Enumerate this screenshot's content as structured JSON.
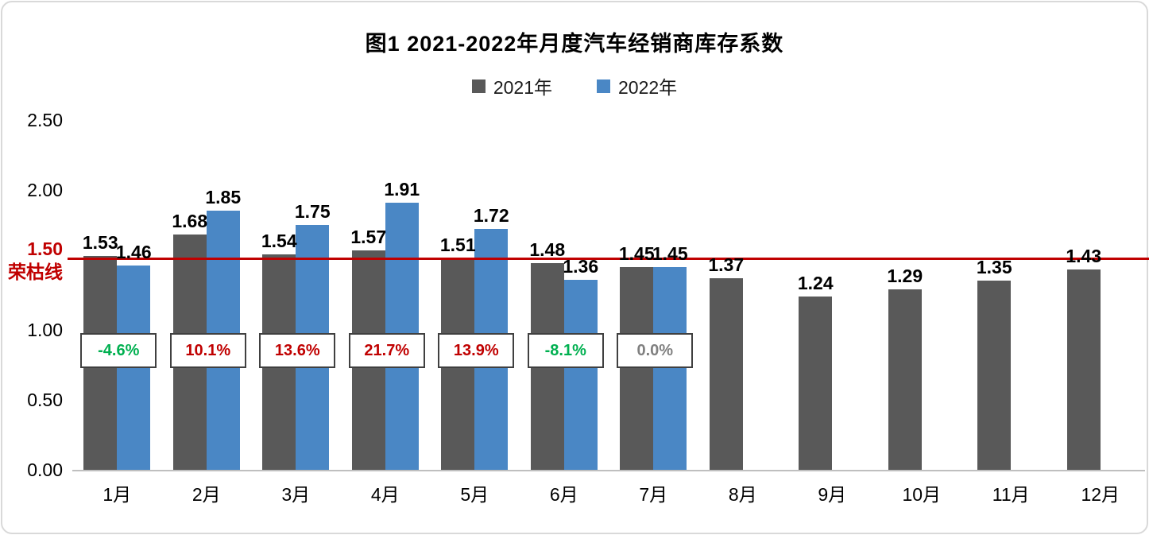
{
  "chart_data": {
    "type": "bar",
    "title": "图1  2021-2022年月度汽车经销商库存系数",
    "categories": [
      "1月",
      "2月",
      "3月",
      "4月",
      "5月",
      "6月",
      "7月",
      "8月",
      "9月",
      "10月",
      "11月",
      "12月"
    ],
    "series": [
      {
        "name": "2021年",
        "color": "#595959",
        "values": [
          1.53,
          1.68,
          1.54,
          1.57,
          1.51,
          1.48,
          1.45,
          1.37,
          1.24,
          1.29,
          1.35,
          1.43
        ]
      },
      {
        "name": "2022年",
        "color": "#4a87c5",
        "values": [
          1.46,
          1.85,
          1.75,
          1.91,
          1.72,
          1.36,
          1.45,
          null,
          null,
          null,
          null,
          null
        ]
      }
    ],
    "ylim": [
      0,
      2.5
    ],
    "yticks": [
      {
        "value": 0,
        "label": "0.00"
      },
      {
        "value": 0.5,
        "label": "0.50"
      },
      {
        "value": 1,
        "label": "1.00"
      },
      {
        "value": 2,
        "label": "2.00"
      },
      {
        "value": 2.5,
        "label": "2.50"
      }
    ],
    "threshold": {
      "value": 1.5,
      "label": "1.50",
      "sublabel": "荣枯线",
      "color": "#c00000"
    },
    "change_labels": [
      {
        "text": "-4.6%",
        "color": "#00b050"
      },
      {
        "text": "10.1%",
        "color": "#c00000"
      },
      {
        "text": "13.6%",
        "color": "#c00000"
      },
      {
        "text": "21.7%",
        "color": "#c00000"
      },
      {
        "text": "13.9%",
        "color": "#c00000"
      },
      {
        "text": "-8.1%",
        "color": "#00b050"
      },
      {
        "text": "0.0%",
        "color": "#808080"
      }
    ],
    "change_label_center_value": 0.85,
    "legend_position": "top",
    "grid": false
  }
}
